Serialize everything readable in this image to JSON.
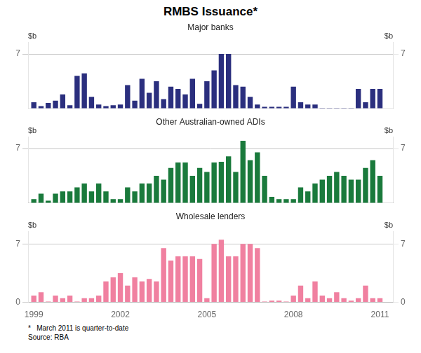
{
  "title": "RMBS Issuance*",
  "annotations": [
    "*   March 2011 is quarter-to-date",
    "Source: RBA"
  ],
  "chart_data": [
    {
      "type": "bar",
      "title": "Major banks",
      "x": [
        1999.0,
        1999.25,
        1999.5,
        1999.75,
        2000.0,
        2000.25,
        2000.5,
        2000.75,
        2001.0,
        2001.25,
        2001.5,
        2001.75,
        2002.0,
        2002.25,
        2002.5,
        2002.75,
        2003.0,
        2003.25,
        2003.5,
        2003.75,
        2004.0,
        2004.25,
        2004.5,
        2004.75,
        2005.0,
        2005.25,
        2005.5,
        2005.75,
        2006.0,
        2006.25,
        2006.5,
        2006.75,
        2007.0,
        2007.25,
        2007.5,
        2007.75,
        2008.0,
        2008.25,
        2008.5,
        2008.75,
        2009.0,
        2009.25,
        2009.5,
        2009.75,
        2010.0,
        2010.25,
        2010.5,
        2010.75,
        2011.0
      ],
      "values": [
        0.8,
        0.3,
        0.7,
        1.0,
        1.8,
        0.4,
        4.2,
        4.5,
        1.5,
        0.5,
        0.3,
        0.4,
        0.5,
        3.0,
        1.0,
        3.8,
        2.0,
        3.5,
        1.2,
        2.8,
        2.5,
        1.8,
        3.8,
        0.6,
        3.5,
        4.9,
        7.0,
        7.0,
        3.0,
        2.8,
        1.5,
        0.5,
        0.2,
        0.2,
        0.2,
        0.2,
        2.8,
        0.8,
        0.5,
        0.5,
        0.05,
        0.05,
        0.05,
        0.05,
        0.05,
        2.5,
        0.8,
        2.5,
        2.5
      ],
      "color": "#2B2F7E",
      "xlim": [
        1998.8,
        2011.45
      ],
      "ylim": [
        0,
        8.5
      ],
      "yticks": [
        7
      ],
      "y2lim": [
        0,
        8.5
      ],
      "y2ticks": [
        7
      ],
      "ylabel": "$b",
      "y2label": "$b",
      "grid": true,
      "tick_labels": "y"
    },
    {
      "type": "bar",
      "title": "Other Australian-owned ADIs",
      "x": [
        1999.0,
        1999.25,
        1999.5,
        1999.75,
        2000.0,
        2000.25,
        2000.5,
        2000.75,
        2001.0,
        2001.25,
        2001.5,
        2001.75,
        2002.0,
        2002.25,
        2002.5,
        2002.75,
        2003.0,
        2003.25,
        2003.5,
        2003.75,
        2004.0,
        2004.25,
        2004.5,
        2004.75,
        2005.0,
        2005.25,
        2005.5,
        2005.75,
        2006.0,
        2006.25,
        2006.5,
        2006.75,
        2007.0,
        2007.25,
        2007.5,
        2007.75,
        2008.0,
        2008.25,
        2008.5,
        2008.75,
        2009.0,
        2009.25,
        2009.5,
        2009.75,
        2010.0,
        2010.25,
        2010.5,
        2010.75,
        2011.0
      ],
      "values": [
        0.5,
        1.2,
        0.3,
        1.2,
        1.5,
        1.5,
        2.0,
        2.5,
        1.5,
        2.5,
        1.5,
        0.5,
        0.5,
        2.0,
        1.5,
        2.5,
        2.5,
        3.5,
        3.0,
        4.5,
        5.2,
        5.2,
        3.5,
        4.5,
        4.0,
        5.2,
        5.3,
        6.0,
        4.0,
        8.0,
        5.5,
        6.5,
        3.5,
        0.8,
        0.5,
        0.5,
        0.5,
        2.0,
        1.5,
        2.5,
        3.0,
        3.5,
        4.0,
        3.5,
        3.0,
        3.0,
        4.5,
        5.5,
        3.5
      ],
      "color": "#1A7A3C",
      "xlim": [
        1998.8,
        2011.45
      ],
      "ylim": [
        0,
        8.5
      ],
      "yticks": [
        7
      ],
      "y2lim": [
        0,
        8.5
      ],
      "y2ticks": [
        7
      ],
      "ylabel": "$b",
      "y2label": "$b",
      "grid": true,
      "tick_labels": "y"
    },
    {
      "type": "bar",
      "title": "Wholesale lenders",
      "x": [
        1999.0,
        1999.25,
        1999.5,
        1999.75,
        2000.0,
        2000.25,
        2000.5,
        2000.75,
        2001.0,
        2001.25,
        2001.5,
        2001.75,
        2002.0,
        2002.25,
        2002.5,
        2002.75,
        2003.0,
        2003.25,
        2003.5,
        2003.75,
        2004.0,
        2004.25,
        2004.5,
        2004.75,
        2005.0,
        2005.25,
        2005.5,
        2005.75,
        2006.0,
        2006.25,
        2006.5,
        2006.75,
        2007.0,
        2007.25,
        2007.5,
        2007.75,
        2008.0,
        2008.25,
        2008.5,
        2008.75,
        2009.0,
        2009.25,
        2009.5,
        2009.75,
        2010.0,
        2010.25,
        2010.5,
        2010.75,
        2011.0
      ],
      "values": [
        0.8,
        1.2,
        0.1,
        0.8,
        0.5,
        0.8,
        0.1,
        0.5,
        0.5,
        0.8,
        2.5,
        3.0,
        3.5,
        2.0,
        3.0,
        2.5,
        2.8,
        2.5,
        6.5,
        5.0,
        5.5,
        5.5,
        5.5,
        5.2,
        0.5,
        7.0,
        7.5,
        5.5,
        5.5,
        7.0,
        7.0,
        6.5,
        0.1,
        0.2,
        0.2,
        0.1,
        0.8,
        2.0,
        0.5,
        2.5,
        0.8,
        0.5,
        1.2,
        0.5,
        0.2,
        0.5,
        2.0,
        0.5,
        0.5
      ],
      "color": "#F080A0",
      "xlim": [
        1998.8,
        2011.45
      ],
      "xticks": [
        1999,
        2002,
        2005,
        2008,
        2011
      ],
      "ylim": [
        0,
        8.5
      ],
      "yticks": [
        0,
        7
      ],
      "y2lim": [
        0,
        8.5
      ],
      "y2ticks": [
        0,
        7
      ],
      "ylabel": "$b",
      "y2label": "$b",
      "grid": true
    }
  ]
}
